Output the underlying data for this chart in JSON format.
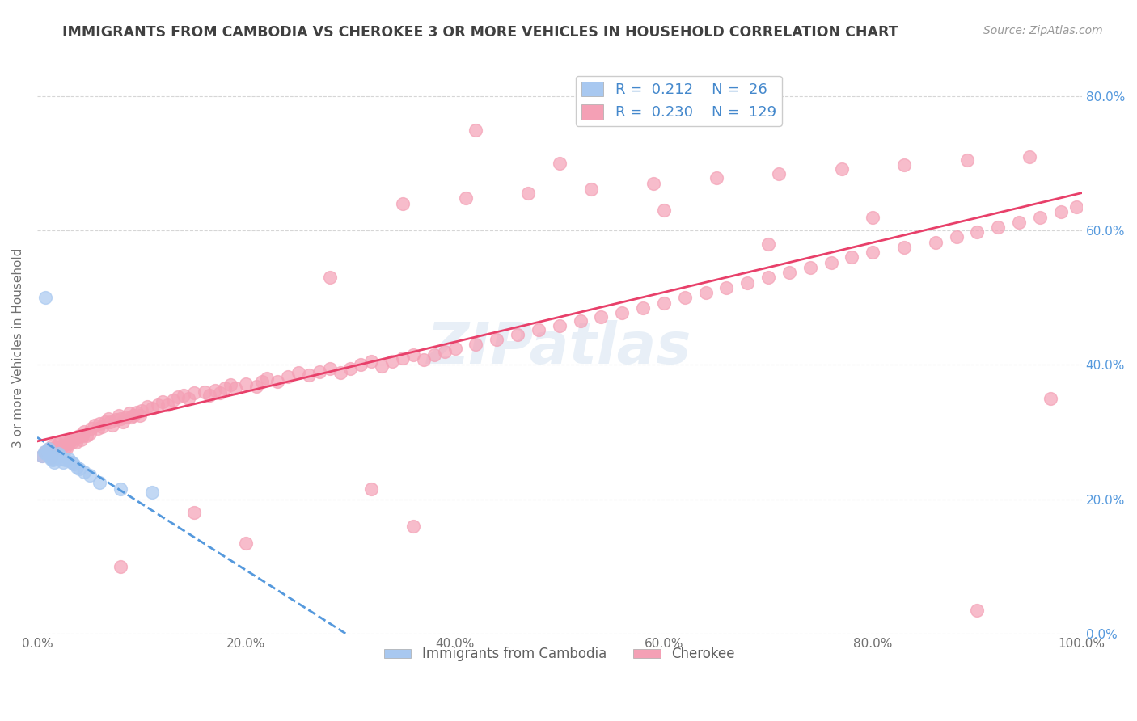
{
  "title": "IMMIGRANTS FROM CAMBODIA VS CHEROKEE 3 OR MORE VEHICLES IN HOUSEHOLD CORRELATION CHART",
  "source": "Source: ZipAtlas.com",
  "ylabel": "3 or more Vehicles in Household",
  "xlim": [
    0.0,
    1.0
  ],
  "ylim": [
    0.0,
    0.85
  ],
  "xticks": [
    0.0,
    0.2,
    0.4,
    0.6,
    0.8,
    1.0
  ],
  "yticks": [
    0.0,
    0.2,
    0.4,
    0.6,
    0.8
  ],
  "ytick_labels": [
    "0.0%",
    "20.0%",
    "40.0%",
    "60.0%",
    "80.0%"
  ],
  "xtick_labels": [
    "0.0%",
    "20.0%",
    "40.0%",
    "60.0%",
    "80.0%",
    "100.0%"
  ],
  "legend_r_cambodia": "0.212",
  "legend_n_cambodia": "26",
  "legend_r_cherokee": "0.230",
  "legend_n_cherokee": "129",
  "cambodia_color": "#a8c8f0",
  "cherokee_color": "#f4a0b5",
  "cambodia_line_color": "#5599dd",
  "cherokee_line_color": "#e8406a",
  "background_color": "#ffffff",
  "grid_color": "#cccccc",
  "cambodia_x": [
    0.005,
    0.007,
    0.008,
    0.01,
    0.011,
    0.012,
    0.013,
    0.015,
    0.016,
    0.018,
    0.02,
    0.022,
    0.024,
    0.025,
    0.027,
    0.03,
    0.033,
    0.035,
    0.038,
    0.04,
    0.045,
    0.05,
    0.06,
    0.08,
    0.11,
    0.008
  ],
  "cambodia_y": [
    0.265,
    0.27,
    0.268,
    0.272,
    0.275,
    0.263,
    0.26,
    0.258,
    0.255,
    0.262,
    0.268,
    0.264,
    0.26,
    0.255,
    0.258,
    0.26,
    0.255,
    0.252,
    0.248,
    0.245,
    0.24,
    0.235,
    0.225,
    0.215,
    0.21,
    0.5
  ],
  "cherokee_x": [
    0.005,
    0.008,
    0.01,
    0.012,
    0.013,
    0.015,
    0.016,
    0.018,
    0.02,
    0.021,
    0.022,
    0.023,
    0.025,
    0.026,
    0.027,
    0.028,
    0.03,
    0.032,
    0.033,
    0.035,
    0.037,
    0.038,
    0.04,
    0.042,
    0.043,
    0.045,
    0.047,
    0.05,
    0.052,
    0.055,
    0.058,
    0.06,
    0.062,
    0.065,
    0.068,
    0.07,
    0.072,
    0.075,
    0.078,
    0.08,
    0.082,
    0.085,
    0.088,
    0.09,
    0.092,
    0.095,
    0.098,
    0.1,
    0.105,
    0.11,
    0.115,
    0.12,
    0.125,
    0.13,
    0.135,
    0.14,
    0.145,
    0.15,
    0.16,
    0.165,
    0.17,
    0.175,
    0.18,
    0.185,
    0.19,
    0.2,
    0.21,
    0.215,
    0.22,
    0.23,
    0.24,
    0.25,
    0.26,
    0.27,
    0.28,
    0.29,
    0.3,
    0.31,
    0.32,
    0.33,
    0.34,
    0.35,
    0.36,
    0.37,
    0.38,
    0.39,
    0.4,
    0.42,
    0.44,
    0.46,
    0.48,
    0.5,
    0.52,
    0.54,
    0.56,
    0.58,
    0.6,
    0.62,
    0.64,
    0.66,
    0.68,
    0.7,
    0.72,
    0.74,
    0.76,
    0.78,
    0.8,
    0.83,
    0.86,
    0.88,
    0.9,
    0.92,
    0.94,
    0.96,
    0.98,
    0.995,
    0.35,
    0.41,
    0.47,
    0.53,
    0.59,
    0.65,
    0.71,
    0.77,
    0.83,
    0.89,
    0.95,
    0.28,
    0.32,
    0.36
  ],
  "cherokee_y": [
    0.265,
    0.27,
    0.268,
    0.275,
    0.262,
    0.28,
    0.272,
    0.278,
    0.282,
    0.275,
    0.285,
    0.278,
    0.28,
    0.285,
    0.278,
    0.275,
    0.282,
    0.288,
    0.285,
    0.29,
    0.285,
    0.292,
    0.295,
    0.288,
    0.295,
    0.3,
    0.295,
    0.298,
    0.305,
    0.31,
    0.305,
    0.312,
    0.308,
    0.315,
    0.32,
    0.315,
    0.31,
    0.318,
    0.325,
    0.32,
    0.315,
    0.322,
    0.328,
    0.322,
    0.325,
    0.33,
    0.325,
    0.332,
    0.338,
    0.335,
    0.34,
    0.345,
    0.34,
    0.348,
    0.352,
    0.355,
    0.35,
    0.358,
    0.36,
    0.355,
    0.362,
    0.358,
    0.365,
    0.37,
    0.365,
    0.372,
    0.368,
    0.375,
    0.38,
    0.375,
    0.382,
    0.388,
    0.385,
    0.39,
    0.395,
    0.388,
    0.395,
    0.4,
    0.405,
    0.398,
    0.405,
    0.41,
    0.415,
    0.408,
    0.415,
    0.42,
    0.425,
    0.43,
    0.438,
    0.445,
    0.452,
    0.458,
    0.465,
    0.472,
    0.478,
    0.485,
    0.492,
    0.5,
    0.508,
    0.515,
    0.522,
    0.53,
    0.538,
    0.545,
    0.552,
    0.56,
    0.568,
    0.575,
    0.582,
    0.59,
    0.598,
    0.605,
    0.612,
    0.62,
    0.628,
    0.635,
    0.64,
    0.648,
    0.655,
    0.662,
    0.67,
    0.678,
    0.685,
    0.692,
    0.698,
    0.705,
    0.71,
    0.53,
    0.215,
    0.16
  ],
  "extra_cherokee_x": [
    0.42,
    0.5,
    0.6,
    0.7,
    0.8,
    0.9,
    0.97,
    0.2,
    0.15,
    0.08
  ],
  "extra_cherokee_y": [
    0.75,
    0.7,
    0.63,
    0.58,
    0.62,
    0.035,
    0.35,
    0.135,
    0.18,
    0.1
  ]
}
